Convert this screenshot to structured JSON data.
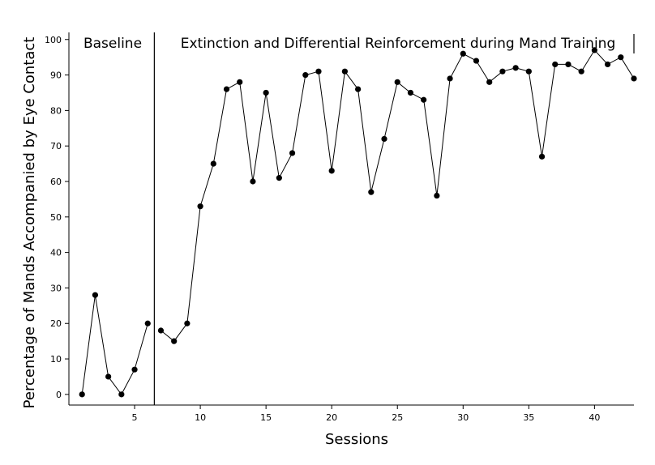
{
  "chart_data": {
    "type": "line",
    "xlabel": "Sessions",
    "ylabel": "Percentage of Mands Accompanied by Eye Contact",
    "xlim": [
      0,
      43
    ],
    "ylim": [
      -3,
      102
    ],
    "xticks": [
      5,
      10,
      15,
      20,
      25,
      30,
      35,
      40
    ],
    "yticks": [
      0,
      10,
      20,
      30,
      40,
      50,
      60,
      70,
      80,
      90,
      100
    ],
    "grid": false,
    "phases": [
      {
        "label": "Baseline",
        "x": [
          1,
          2,
          3,
          4,
          5,
          6
        ],
        "y": [
          0,
          28,
          5,
          0,
          7,
          20
        ]
      },
      {
        "label": "Extinction and Differential Reinforcement during Mand Training",
        "x": [
          7,
          8,
          9,
          10,
          11,
          12,
          13,
          14,
          15,
          16,
          17,
          18,
          19,
          20,
          21,
          22,
          23,
          24,
          25,
          26,
          27,
          28,
          29,
          30,
          31,
          32,
          33,
          34,
          35,
          36,
          37,
          38,
          39,
          40,
          41,
          42,
          43
        ],
        "y": [
          18,
          15,
          20,
          53,
          65,
          86,
          88,
          60,
          85,
          61,
          68,
          90,
          91,
          63,
          91,
          86,
          57,
          72,
          88,
          85,
          83,
          56,
          89,
          96,
          94,
          88,
          91,
          92,
          91,
          67,
          93,
          93,
          91,
          97,
          93,
          95,
          89
        ]
      }
    ],
    "phase_change_x": 6.5,
    "colors": {
      "line": "#000000",
      "marker": "#000000",
      "axis": "#000000"
    }
  }
}
